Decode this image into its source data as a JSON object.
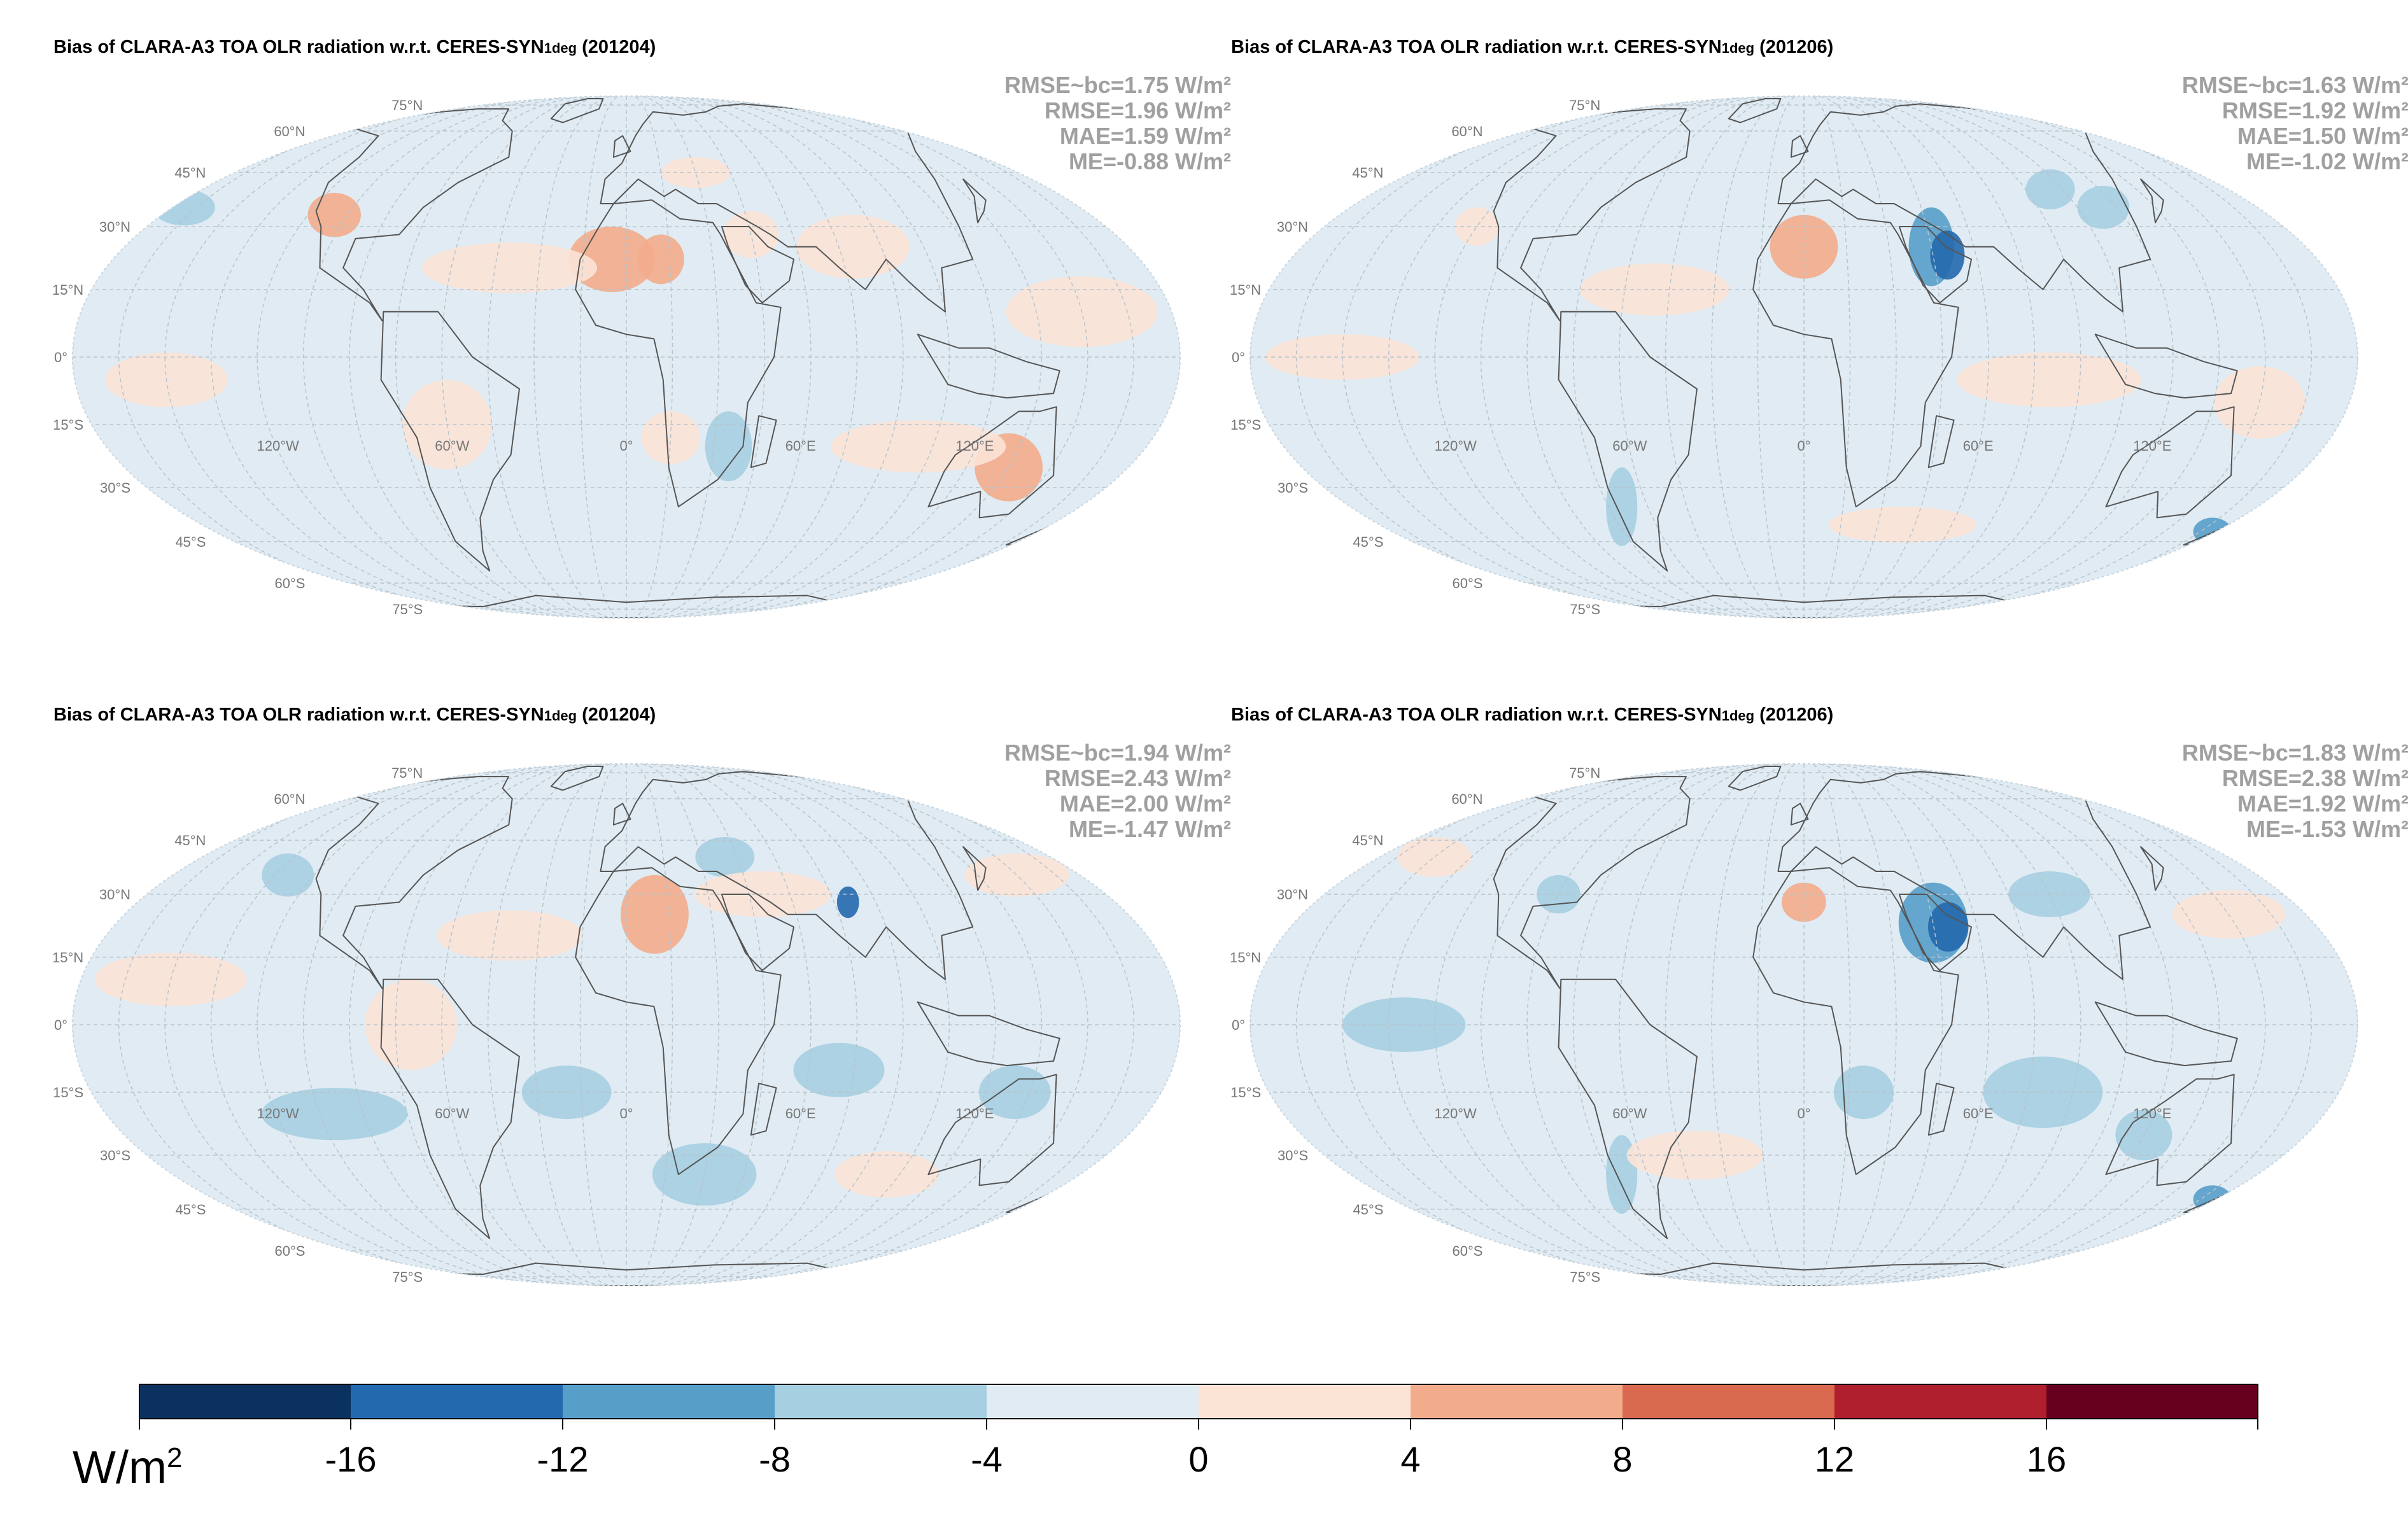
{
  "colors": {
    "ocean_base": "#e0ebf3",
    "coast": "#555555",
    "grid": "#b8c4cc",
    "stats_text": "#a0a0a0"
  },
  "panels": [
    {
      "id": "p1",
      "title_main": "Bias of CLARA-A3 TOA OLR radiation w.r.t. CERES-SYN",
      "title_sub": "1deg",
      "title_period": "  (201204)",
      "stats": [
        "RMSE~bc=1.75 W/m²",
        "RMSE=1.96 W/m²",
        "MAE=1.59 W/m²",
        "ME=-0.88 W/m²"
      ]
    },
    {
      "id": "p2",
      "title_main": "Bias of CLARA-A3 TOA OLR radiation w.r.t. CERES-SYN",
      "title_sub": "1deg",
      "title_period": "  (201206)",
      "stats": [
        "RMSE~bc=1.63 W/m²",
        "RMSE=1.92 W/m²",
        "MAE=1.50 W/m²",
        "ME=-1.02 W/m²"
      ]
    },
    {
      "id": "p3",
      "title_main": "Bias of CLARA-A3 TOA OLR radiation w.r.t. CERES-SYN",
      "title_sub": "1deg",
      "title_period": "  (201204)",
      "stats": [
        "RMSE~bc=1.94 W/m²",
        "RMSE=2.43 W/m²",
        "MAE=2.00 W/m²",
        "ME=-1.47 W/m²"
      ]
    },
    {
      "id": "p4",
      "title_main": "Bias of CLARA-A3 TOA OLR radiation w.r.t. CERES-SYN",
      "title_sub": "1deg",
      "title_period": "  (201206)",
      "stats": [
        "RMSE~bc=1.83 W/m²",
        "RMSE=2.38 W/m²",
        "MAE=1.92 W/m²",
        "ME=-1.53 W/m²"
      ]
    }
  ],
  "map_labels": {
    "lat": [
      "75°N",
      "60°N",
      "45°N",
      "30°N",
      "15°N",
      "0°",
      "15°S",
      "30°S",
      "45°S",
      "60°S",
      "75°S"
    ],
    "lon": [
      "120°W",
      "60°W",
      "0°",
      "60°E",
      "120°E"
    ]
  },
  "colorbar": {
    "unit": "W/m",
    "unit_sup": "2",
    "range": [
      -20,
      20
    ],
    "bins": [
      {
        "from": -20,
        "to": -16,
        "color": "#0a3160"
      },
      {
        "from": -16,
        "to": -12,
        "color": "#2369ad"
      },
      {
        "from": -12,
        "to": -8,
        "color": "#579ec9"
      },
      {
        "from": -8,
        "to": -4,
        "color": "#a6cfe2"
      },
      {
        "from": -4,
        "to": 0,
        "color": "#e0ebf3"
      },
      {
        "from": 0,
        "to": 4,
        "color": "#fbe3d6"
      },
      {
        "from": 4,
        "to": 8,
        "color": "#f3ac8b"
      },
      {
        "from": 8,
        "to": 12,
        "color": "#d9694f"
      },
      {
        "from": 12,
        "to": 16,
        "color": "#b01f2e"
      },
      {
        "from": 16,
        "to": 20,
        "color": "#67001f"
      }
    ],
    "tick_values": [
      -16,
      -12,
      -8,
      -4,
      0,
      4,
      8,
      12,
      16
    ],
    "tick_labels": [
      "-16",
      "-12",
      "-8",
      "-4",
      "0",
      "4",
      "8",
      "12",
      "16"
    ]
  }
}
